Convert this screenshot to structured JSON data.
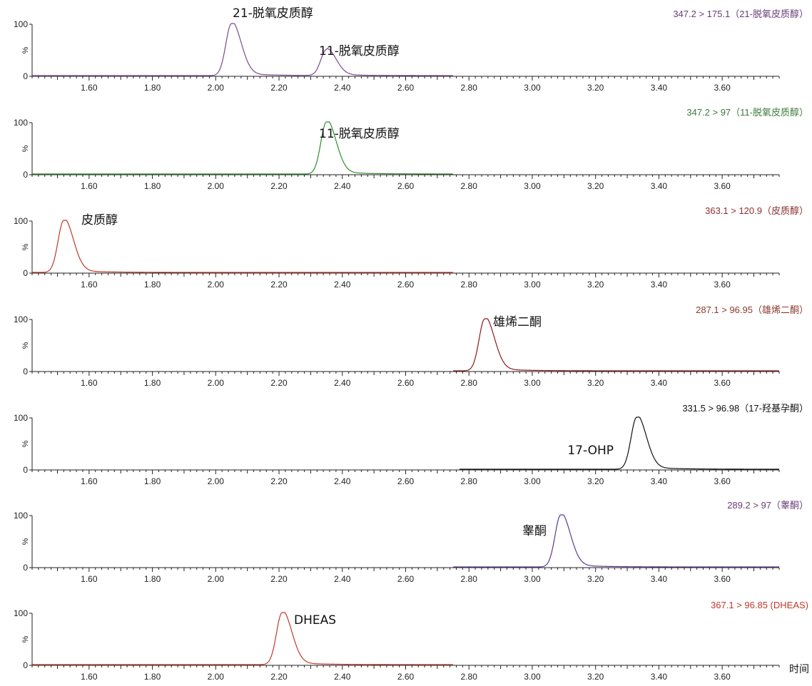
{
  "chart_data": [
    {
      "type": "line",
      "trace_label": "347.2 > 175.1（21-脱氧皮质醇）",
      "label_color": "#6a3d7a",
      "color": "#7a4a8e",
      "ylabel": "%",
      "ylim": [
        0,
        100
      ],
      "yticks": [
        "100",
        "0"
      ],
      "xlim": [
        1.42,
        3.78
      ],
      "xticks": [
        "1.60",
        "1.80",
        "2.00",
        "2.20",
        "2.40",
        "2.60",
        "2.80",
        "3.00",
        "3.20",
        "3.40",
        "3.60"
      ],
      "x_unit": "",
      "trace_range": [
        1.42,
        2.75
      ],
      "peaks": [
        {
          "x": 2.05,
          "y": 100,
          "label": "21-脱氧皮质醇"
        },
        {
          "x": 2.35,
          "y": 50,
          "label": "11-脱氧皮质醇"
        }
      ]
    },
    {
      "type": "line",
      "trace_label": "347.2 > 97（11-脱氧皮质醇）",
      "label_color": "#3d7a3d",
      "color": "#2e8b2e",
      "ylabel": "%",
      "ylim": [
        0,
        100
      ],
      "yticks": [
        "100",
        "0"
      ],
      "xlim": [
        1.42,
        3.78
      ],
      "xticks": [
        "1.60",
        "1.80",
        "2.00",
        "2.20",
        "2.40",
        "2.60",
        "2.80",
        "3.00",
        "3.20",
        "3.40",
        "3.60"
      ],
      "x_unit": "",
      "trace_range": [
        1.42,
        2.75
      ],
      "peaks": [
        {
          "x": 2.35,
          "y": 100,
          "label": "11-脱氧皮质醇"
        }
      ]
    },
    {
      "type": "line",
      "trace_label": "363.1 > 120.9（皮质醇）",
      "label_color": "#8b2e2e",
      "color": "#c0392b",
      "ylabel": "%",
      "ylim": [
        0,
        100
      ],
      "yticks": [
        "100",
        "0"
      ],
      "xlim": [
        1.42,
        3.78
      ],
      "xticks": [
        "1.60",
        "1.80",
        "2.00",
        "2.20",
        "2.40",
        "2.60",
        "2.80",
        "3.00",
        "3.20",
        "3.40",
        "3.60"
      ],
      "x_unit": "",
      "trace_range": [
        1.42,
        2.75
      ],
      "peaks": [
        {
          "x": 1.52,
          "y": 100,
          "label": "皮质醇"
        }
      ]
    },
    {
      "type": "line",
      "trace_label": "287.1 > 96.95（雄烯二酮）",
      "label_color": "#8b3a2e",
      "color": "#8b1a1a",
      "ylabel": "%",
      "ylim": [
        0,
        100
      ],
      "yticks": [
        "100",
        "0"
      ],
      "xlim": [
        1.42,
        3.78
      ],
      "xticks": [
        "1.60",
        "1.80",
        "2.00",
        "2.20",
        "2.40",
        "2.60",
        "2.80",
        "3.00",
        "3.20",
        "3.40",
        "3.60"
      ],
      "x_unit": "",
      "trace_range": [
        2.75,
        3.78
      ],
      "peaks": [
        {
          "x": 2.85,
          "y": 100,
          "label": "雄烯二酮"
        }
      ]
    },
    {
      "type": "line",
      "trace_label": "331.5 > 96.98（17-羟基孕酮）",
      "label_color": "#111111",
      "color": "#111111",
      "ylabel": "%",
      "ylim": [
        0,
        100
      ],
      "yticks": [
        "100",
        "0"
      ],
      "xlim": [
        1.42,
        3.78
      ],
      "xticks": [
        "1.60",
        "1.80",
        "2.00",
        "2.20",
        "2.40",
        "2.60",
        "2.80",
        "3.00",
        "3.20",
        "3.40",
        "3.60"
      ],
      "x_unit": "",
      "trace_range": [
        2.77,
        3.78
      ],
      "peaks": [
        {
          "x": 3.33,
          "y": 100,
          "label": "17-OHP"
        }
      ]
    },
    {
      "type": "line",
      "trace_label": "289.2 > 97（睾酮）",
      "label_color": "#6a3d7a",
      "color": "#5a3a8e",
      "ylabel": "%",
      "ylim": [
        0,
        100
      ],
      "yticks": [
        "100",
        "0"
      ],
      "xlim": [
        1.42,
        3.78
      ],
      "xticks": [
        "1.60",
        "1.80",
        "2.00",
        "2.20",
        "2.40",
        "2.60",
        "2.80",
        "3.00",
        "3.20",
        "3.40",
        "3.60"
      ],
      "x_unit": "",
      "trace_range": [
        2.75,
        3.78
      ],
      "peaks": [
        {
          "x": 3.09,
          "y": 100,
          "label": "睾酮"
        }
      ]
    },
    {
      "type": "line",
      "trace_label": "367.1 > 96.85 (DHEAS)",
      "label_color": "#c0392b",
      "color": "#c0392b",
      "ylabel": "%",
      "ylim": [
        0,
        100
      ],
      "yticks": [
        "100",
        "0"
      ],
      "xlim": [
        1.42,
        3.78
      ],
      "xticks": [
        "1.60",
        "1.80",
        "2.00",
        "2.20",
        "2.40",
        "2.60",
        "2.80",
        "3.00",
        "3.20",
        "3.40",
        "3.60"
      ],
      "x_unit": "时间",
      "trace_range": [
        1.42,
        2.75
      ],
      "peaks": [
        {
          "x": 2.21,
          "y": 100,
          "label": "DHEAS"
        }
      ]
    }
  ]
}
